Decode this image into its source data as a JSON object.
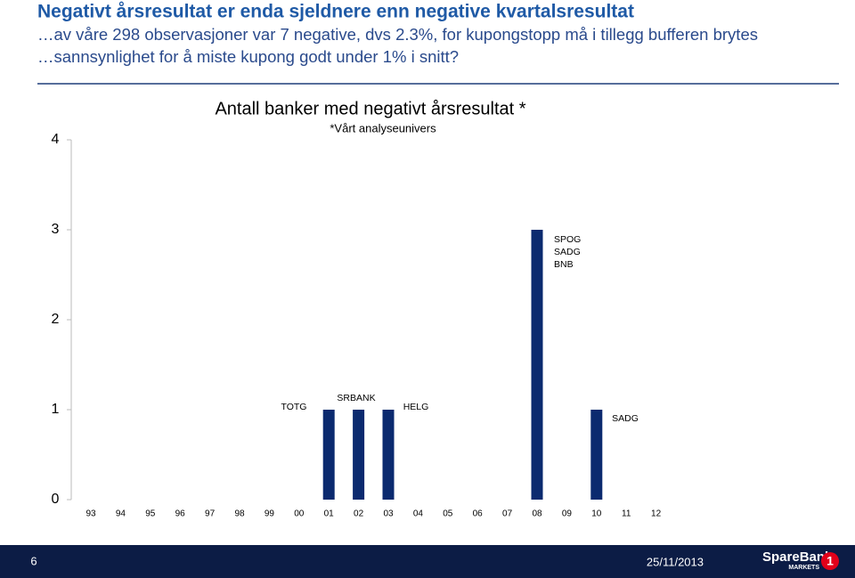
{
  "header": {
    "title": "Negativt årsresultat er enda sjeldnere enn negative kvartalsresultat",
    "lines": [
      "…av våre 298 observasjoner var 7 negative, dvs 2.3%, for kupongstopp må i tillegg bufferen brytes",
      "…sannsynlighet for å miste kupong godt under 1% i snitt?"
    ]
  },
  "chart_data": {
    "type": "bar",
    "title": "Antall banker med negativt årsresultat *",
    "subtitle": "*Vårt analyseunivers",
    "categories": [
      "93",
      "94",
      "95",
      "96",
      "97",
      "98",
      "99",
      "00",
      "01",
      "02",
      "03",
      "04",
      "05",
      "06",
      "07",
      "08",
      "09",
      "10",
      "11",
      "12"
    ],
    "values": [
      0,
      0,
      0,
      0,
      0,
      0,
      0,
      0,
      1,
      1,
      1,
      0,
      0,
      0,
      0,
      3,
      0,
      1,
      0,
      0
    ],
    "color": "#0b2a6f",
    "ylim": [
      0,
      4
    ],
    "yticks": [
      0,
      1,
      2,
      3,
      4
    ],
    "grid": false,
    "annotations": [
      {
        "text": "TOTG"
      },
      {
        "text": "SRBANK"
      },
      {
        "text": "HELG"
      },
      {
        "lines": [
          "SPOG",
          "SADG",
          "BNB"
        ]
      },
      {
        "text": "SADG"
      }
    ]
  },
  "footer": {
    "page": "6",
    "date": "25/11/2013",
    "logo": {
      "name": "SpareBank",
      "sub": "MARKETS",
      "number": "1"
    }
  }
}
